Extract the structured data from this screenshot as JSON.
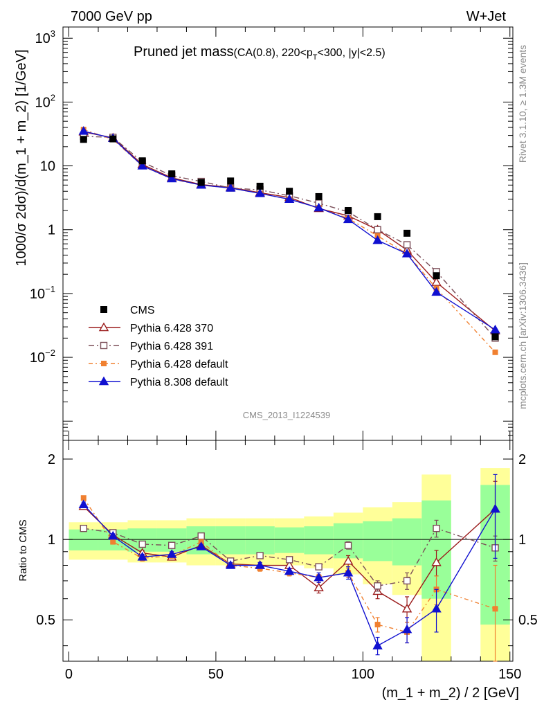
{
  "header": {
    "left": "7000 GeV pp",
    "right": "W+Jet"
  },
  "side_labels": {
    "rivet": "Rivet 3.1.10, ≥ 1.3M events",
    "mcplots": "mcplots.cern.ch [arXiv:1306.3436]"
  },
  "chart_data": {
    "type": "line",
    "title": "Pruned jet mass",
    "subtitle_parts": {
      "a": "(CA(0.8), 220<p",
      "sub": "T",
      "b": "<300, |y|<2.5)"
    },
    "analysis_id": "CMS_2013_I1224539",
    "xlabel": "(m_1 + m_2) / 2 [GeV]",
    "ylabel": "1000/σ 2dσ)/d(m_1 + m_2) [1/GeV]",
    "ratio_ylabel": "Ratio to CMS",
    "xlim": [
      -2,
      151
    ],
    "ylim_main": [
      0.0005,
      1500
    ],
    "ylim_ratio": [
      0.35,
      2.35
    ],
    "x_ticks": [
      "0",
      "50",
      "100",
      "150"
    ],
    "y_ticks_main": [
      {
        "v": 1000,
        "base": "10",
        "exp": "3"
      },
      {
        "v": 100,
        "base": "10",
        "exp": "2"
      },
      {
        "v": 10,
        "base": "10",
        "exp": ""
      },
      {
        "v": 1,
        "base": "1",
        "exp": ""
      },
      {
        "v": 0.1,
        "base": "10",
        "exp": "−1"
      },
      {
        "v": 0.01,
        "base": "10",
        "exp": "−2"
      }
    ],
    "y_ticks_ratio": [
      "0.5",
      "1",
      "2"
    ],
    "x": [
      5,
      15,
      25,
      35,
      45,
      55,
      65,
      75,
      85,
      95,
      105,
      115,
      125,
      145
    ],
    "data": {
      "name": "CMS",
      "values": [
        26,
        26.5,
        12,
        7.5,
        5.5,
        5.8,
        4.8,
        4.0,
        3.3,
        2.0,
        1.6,
        0.88,
        0.19,
        0.021
      ]
    },
    "bands": {
      "edges": [
        0,
        10,
        20,
        30,
        40,
        50,
        60,
        70,
        80,
        90,
        100,
        110,
        120,
        130,
        140,
        150
      ],
      "inner_lo": [
        0.91,
        0.91,
        0.9,
        0.9,
        0.88,
        0.88,
        0.88,
        0.89,
        0.88,
        0.85,
        0.83,
        0.8,
        0.6,
        null,
        0.48
      ],
      "inner_hi": [
        1.09,
        1.09,
        1.1,
        1.1,
        1.12,
        1.12,
        1.12,
        1.11,
        1.12,
        1.15,
        1.17,
        1.2,
        1.4,
        null,
        1.6
      ],
      "outer_lo": [
        0.84,
        0.84,
        0.82,
        0.82,
        0.8,
        0.8,
        0.8,
        0.8,
        0.78,
        0.74,
        0.68,
        0.62,
        0.35,
        null,
        0.35
      ],
      "outer_hi": [
        1.16,
        1.16,
        1.18,
        1.18,
        1.2,
        1.2,
        1.2,
        1.2,
        1.22,
        1.26,
        1.32,
        1.38,
        1.75,
        null,
        1.85
      ]
    },
    "series": [
      {
        "name": "Pythia 6.428 370",
        "color": "#9b1c1c",
        "marker": "triangle-open",
        "dash": "",
        "values": [
          34,
          27.5,
          10.5,
          6.5,
          5.1,
          4.6,
          3.8,
          3.2,
          2.15,
          1.65,
          1.0,
          0.48,
          0.15,
          0.026
        ],
        "ratio": [
          1.33,
          1.04,
          0.89,
          0.86,
          0.95,
          0.81,
          0.8,
          0.8,
          0.66,
          0.83,
          0.64,
          0.55,
          0.82,
          1.3
        ],
        "ratio_err": [
          0.02,
          0.02,
          0.02,
          0.02,
          0.02,
          0.02,
          0.02,
          0.02,
          0.03,
          0.04,
          0.04,
          0.06,
          0.09,
          0.35
        ]
      },
      {
        "name": "Pythia 6.428 391",
        "color": "#7a4d57",
        "marker": "square-open",
        "dash": "8,4,2,4",
        "values": [
          29,
          28,
          11.5,
          7.0,
          5.7,
          4.5,
          4.2,
          3.4,
          2.6,
          1.9,
          1.0,
          0.58,
          0.22,
          0.02
        ],
        "ratio": [
          1.1,
          1.06,
          0.96,
          0.95,
          1.03,
          0.83,
          0.87,
          0.84,
          0.79,
          0.95,
          0.67,
          0.7,
          1.1,
          0.93
        ],
        "ratio_err": [
          0.02,
          0.02,
          0.02,
          0.02,
          0.02,
          0.02,
          0.02,
          0.02,
          0.02,
          0.03,
          0.03,
          0.05,
          0.08,
          0.1
        ]
      },
      {
        "name": "Pythia 6.428 default",
        "color": "#f08030",
        "marker": "square-filled",
        "dash": "6,4,2,4",
        "values": [
          37,
          26,
          10,
          6.2,
          5.0,
          4.5,
          3.7,
          3.0,
          2.2,
          1.5,
          0.8,
          0.42,
          0.12,
          0.012
        ],
        "ratio": [
          1.43,
          0.98,
          0.85,
          0.87,
          0.98,
          0.8,
          0.78,
          0.75,
          0.72,
          0.75,
          0.48,
          0.45,
          0.65,
          0.55
        ],
        "ratio_err": [
          0.02,
          0.02,
          0.02,
          0.02,
          0.02,
          0.02,
          0.02,
          0.02,
          0.02,
          0.03,
          0.03,
          0.04,
          0.08,
          0.25
        ]
      },
      {
        "name": "Pythia 8.308 default",
        "color": "#1010d0",
        "marker": "triangle-filled",
        "dash": "",
        "values": [
          35,
          27,
          10,
          6.3,
          5.0,
          4.5,
          3.7,
          3.0,
          2.2,
          1.45,
          0.68,
          0.42,
          0.105,
          0.027
        ],
        "ratio": [
          1.35,
          1.03,
          0.86,
          0.88,
          0.94,
          0.8,
          0.8,
          0.76,
          0.72,
          0.75,
          0.4,
          0.46,
          0.55,
          1.3
        ],
        "ratio_err": [
          0.03,
          0.02,
          0.02,
          0.02,
          0.02,
          0.02,
          0.02,
          0.02,
          0.03,
          0.04,
          0.03,
          0.05,
          0.1,
          0.45
        ]
      }
    ],
    "legend_position": "lower-left"
  }
}
